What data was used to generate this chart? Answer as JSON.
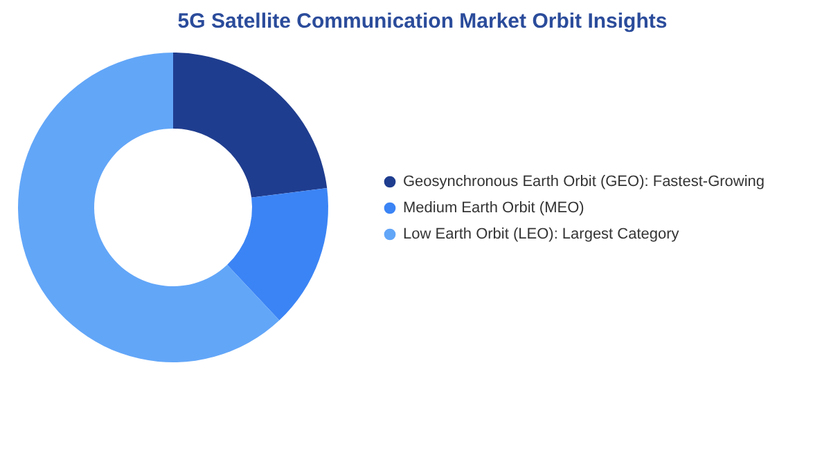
{
  "chart_data": {
    "type": "donut",
    "title": "5G Satellite Communication Market Orbit Insights",
    "categories": [
      "Geosynchronous Earth Orbit (GEO):  Fastest-Growing",
      "Medium Earth Orbit (MEO)",
      "Low Earth Orbit (LEO):  Largest Category"
    ],
    "values": [
      23,
      15,
      62
    ],
    "colors": [
      "#1f3d8f",
      "#3b84f5",
      "#62a6f8"
    ],
    "legend": "right"
  }
}
